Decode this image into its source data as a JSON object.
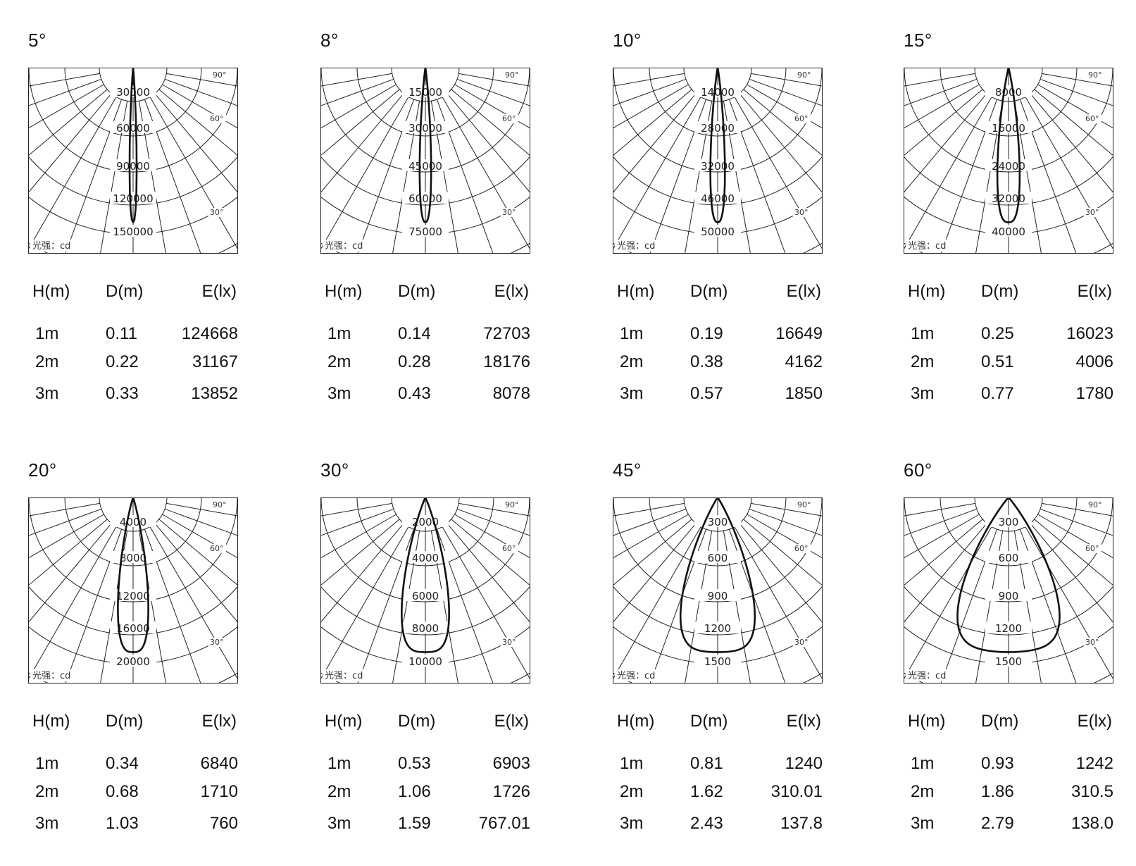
{
  "chart_data": [
    {
      "type": "polar",
      "title": "5°",
      "unit_label": "光强：cd",
      "angle_labels": [
        "90°",
        "60°",
        "30°"
      ],
      "radial_ticks": [
        "30000",
        "60000",
        "90000",
        "120000",
        "150000"
      ],
      "radial_max": 150000,
      "beam_angle_deg": 5,
      "table": {
        "headers": [
          "H(m)",
          "D(m)",
          "E(lx)"
        ],
        "rows": [
          [
            "1m",
            "0.11",
            "124668"
          ],
          [
            "2m",
            "0.22",
            "31167"
          ],
          [
            "3m",
            "0.33",
            "13852"
          ]
        ]
      }
    },
    {
      "type": "polar",
      "title": "8°",
      "unit_label": "光强：cd",
      "angle_labels": [
        "90°",
        "60°",
        "30°"
      ],
      "radial_ticks": [
        "15000",
        "30000",
        "45000",
        "60000",
        "75000"
      ],
      "radial_max": 75000,
      "beam_angle_deg": 8,
      "table": {
        "headers": [
          "H(m)",
          "D(m)",
          "E(lx)"
        ],
        "rows": [
          [
            "1m",
            "0.14",
            "72703"
          ],
          [
            "2m",
            "0.28",
            "18176"
          ],
          [
            "3m",
            "0.43",
            "8078"
          ]
        ]
      }
    },
    {
      "type": "polar",
      "title": "10°",
      "unit_label": "光强：cd",
      "angle_labels": [
        "90°",
        "60°",
        "30°"
      ],
      "radial_ticks": [
        "14000",
        "28000",
        "32000",
        "46000",
        "50000"
      ],
      "radial_max": 50000,
      "beam_angle_deg": 10,
      "table": {
        "headers": [
          "H(m)",
          "D(m)",
          "E(lx)"
        ],
        "rows": [
          [
            "1m",
            "0.19",
            "16649"
          ],
          [
            "2m",
            "0.38",
            "4162"
          ],
          [
            "3m",
            "0.57",
            "1850"
          ]
        ]
      }
    },
    {
      "type": "polar",
      "title": "15°",
      "unit_label": "光强：cd",
      "angle_labels": [
        "90°",
        "60°",
        "30°"
      ],
      "radial_ticks": [
        "8000",
        "16000",
        "24000",
        "32000",
        "40000"
      ],
      "radial_max": 40000,
      "beam_angle_deg": 15,
      "table": {
        "headers": [
          "H(m)",
          "D(m)",
          "E(lx)"
        ],
        "rows": [
          [
            "1m",
            "0.25",
            "16023"
          ],
          [
            "2m",
            "0.51",
            "4006"
          ],
          [
            "3m",
            "0.77",
            "1780"
          ]
        ]
      }
    },
    {
      "type": "polar",
      "title": "20°",
      "unit_label": "光强：cd",
      "angle_labels": [
        "90°",
        "60°",
        "30°"
      ],
      "radial_ticks": [
        "4000",
        "8000",
        "12000",
        "16000",
        "20000"
      ],
      "radial_max": 20000,
      "beam_angle_deg": 20,
      "table": {
        "headers": [
          "H(m)",
          "D(m)",
          "E(lx)"
        ],
        "rows": [
          [
            "1m",
            "0.34",
            "6840"
          ],
          [
            "2m",
            "0.68",
            "1710"
          ],
          [
            "3m",
            "1.03",
            "760"
          ]
        ]
      }
    },
    {
      "type": "polar",
      "title": "30°",
      "unit_label": "光强：cd",
      "angle_labels": [
        "90°",
        "60°",
        "30°"
      ],
      "radial_ticks": [
        "2000",
        "4000",
        "6000",
        "8000",
        "10000"
      ],
      "radial_max": 10000,
      "beam_angle_deg": 30,
      "table": {
        "headers": [
          "H(m)",
          "D(m)",
          "E(lx)"
        ],
        "rows": [
          [
            "1m",
            "0.53",
            "6903"
          ],
          [
            "2m",
            "1.06",
            "1726"
          ],
          [
            "3m",
            "1.59",
            "767.01"
          ]
        ]
      }
    },
    {
      "type": "polar",
      "title": "45°",
      "unit_label": "光强：cd",
      "angle_labels": [
        "90°",
        "60°",
        "30°"
      ],
      "radial_ticks": [
        "300",
        "600",
        "900",
        "1200",
        "1500"
      ],
      "radial_max": 1500,
      "beam_angle_deg": 45,
      "table": {
        "headers": [
          "H(m)",
          "D(m)",
          "E(lx)"
        ],
        "rows": [
          [
            "1m",
            "0.81",
            "1240"
          ],
          [
            "2m",
            "1.62",
            "310.01"
          ],
          [
            "3m",
            "2.43",
            "137.8"
          ]
        ]
      }
    },
    {
      "type": "polar",
      "title": "60°",
      "unit_label": "光强：cd",
      "angle_labels": [
        "90°",
        "60°",
        "30°"
      ],
      "radial_ticks": [
        "300",
        "600",
        "900",
        "1200",
        "1500"
      ],
      "radial_max": 1500,
      "beam_angle_deg": 60,
      "table": {
        "headers": [
          "H(m)",
          "D(m)",
          "E(lx)"
        ],
        "rows": [
          [
            "1m",
            "0.93",
            "1242"
          ],
          [
            "2m",
            "1.86",
            "310.5"
          ],
          [
            "3m",
            "2.79",
            "138.0"
          ]
        ]
      }
    }
  ]
}
